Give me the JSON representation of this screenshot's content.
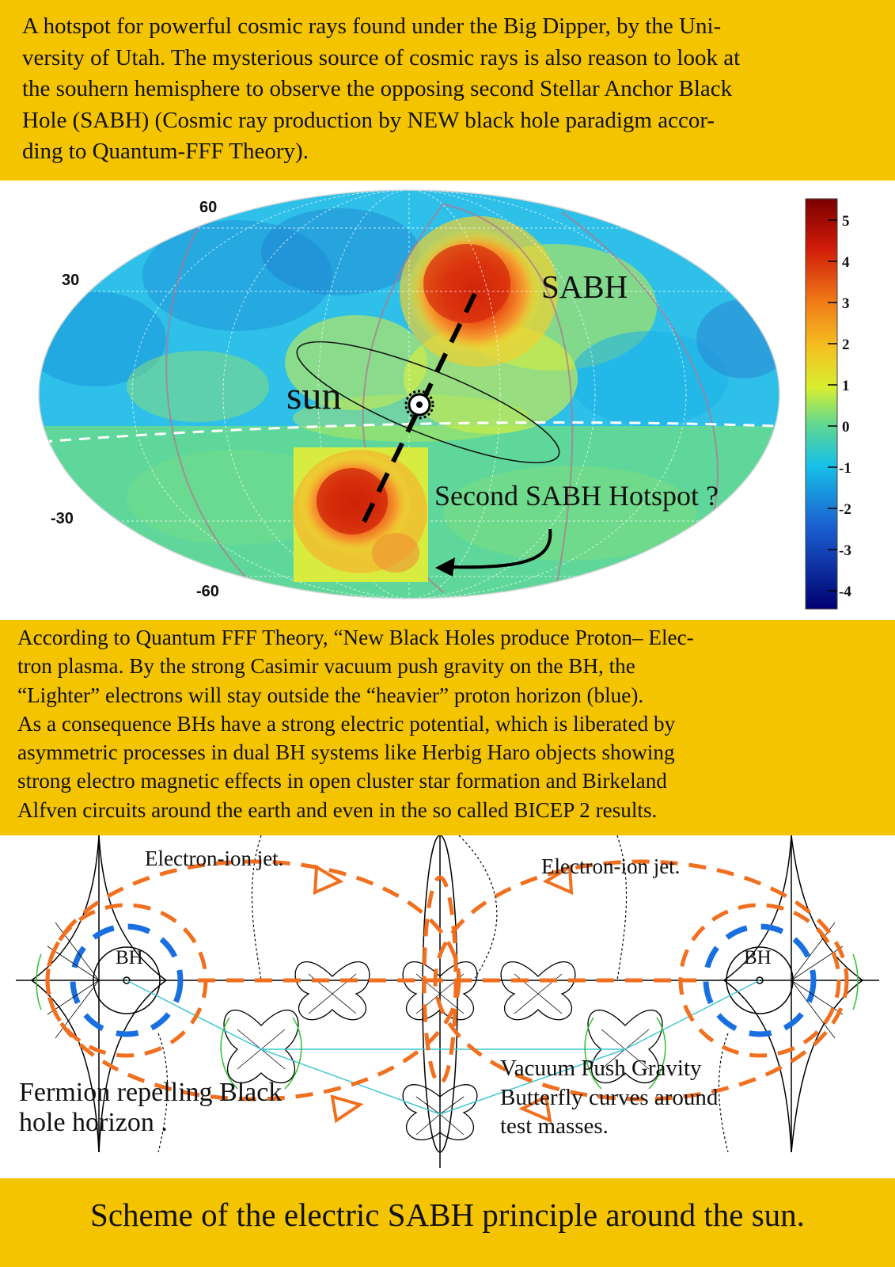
{
  "top_text": [
    "A hotspot for powerful cosmic rays found under the Big Dipper, by the Uni-",
    "versity of Utah. The mysterious source of cosmic rays is also reason to look at",
    "the souhern hemisphere to observe the opposing second Stellar Anchor Black",
    "Hole (SABH) (Cosmic ray production by NEW black hole paradigm accor-",
    "ding to Quantum-FFF Theory)."
  ],
  "sky_map": {
    "lat_labels": [
      "60",
      "30",
      "-30",
      "-60"
    ],
    "sabh_label": "SABH",
    "sun_label": "sun",
    "second_label": "Second SABH Hotspot ?",
    "colorbar_ticks": [
      "5",
      "4",
      "3",
      "2",
      "1",
      "0",
      "-1",
      "-2",
      "-3",
      "-4"
    ],
    "colorbar_colors": [
      "#7a0000",
      "#e23a10",
      "#f5a623",
      "#e8f020",
      "#5de08f",
      "#1ec8e8",
      "#1a5fd0",
      "#000070"
    ]
  },
  "middle_text": [
    "According to  Quantum FFF Theory, “New Black Holes produce Proton– Elec-",
    "tron plasma. By the strong Casimir vacuum push gravity on the BH, the",
    "“Lighter” electrons will stay outside the “heavier” proton horizon (blue).",
    "As a consequence BHs have a strong electric potential, which is liberated by",
    "asymmetric processes in dual BH systems like Herbig Haro objects showing",
    "strong electro magnetic effects in open cluster star formation and Birkeland",
    "Alfven circuits around the earth and even in the so called BICEP 2  results."
  ],
  "scheme": {
    "jet_left": "Electron-ion jet.",
    "jet_right": "Electron-ion jet.",
    "bh_left": "BH",
    "bh_right": "BH",
    "fermion_line1": "Fermion repelling Black",
    "fermion_line2": "hole horizon .",
    "vacuum_line1": "Vacuum Push Gravity",
    "vacuum_line2": "Butterfly curves around",
    "vacuum_line3": "test masses.",
    "colors": {
      "orange": "#f07020",
      "blue": "#1a6fe0",
      "green": "#30c030",
      "cyan": "#40c8d0"
    }
  },
  "caption": "Scheme of the electric SABH principle around the sun."
}
